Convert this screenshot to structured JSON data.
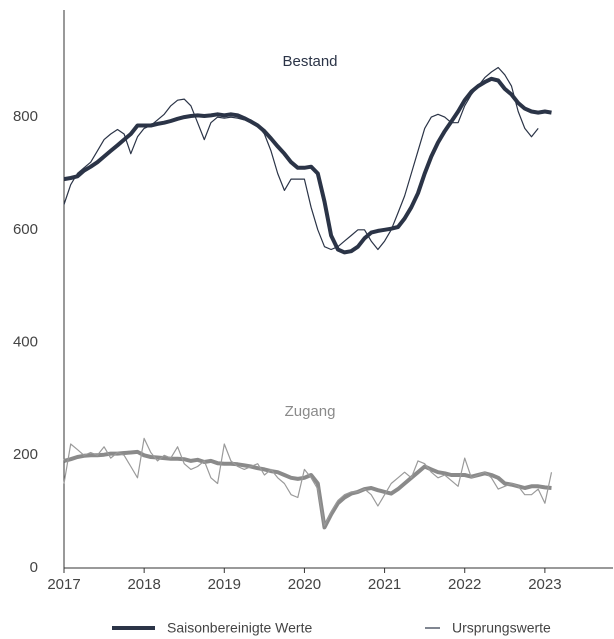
{
  "chart_data": {
    "type": "line",
    "x": [
      2017.0,
      2017.083,
      2017.167,
      2017.25,
      2017.333,
      2017.417,
      2017.5,
      2017.583,
      2017.667,
      2017.75,
      2017.833,
      2017.917,
      2018.0,
      2018.083,
      2018.167,
      2018.25,
      2018.333,
      2018.417,
      2018.5,
      2018.583,
      2018.667,
      2018.75,
      2018.833,
      2018.917,
      2019.0,
      2019.083,
      2019.167,
      2019.25,
      2019.333,
      2019.417,
      2019.5,
      2019.583,
      2019.667,
      2019.75,
      2019.833,
      2019.917,
      2020.0,
      2020.083,
      2020.167,
      2020.25,
      2020.333,
      2020.417,
      2020.5,
      2020.583,
      2020.667,
      2020.75,
      2020.833,
      2020.917,
      2021.0,
      2021.083,
      2021.167,
      2021.25,
      2021.333,
      2021.417,
      2021.5,
      2021.583,
      2021.667,
      2021.75,
      2021.833,
      2021.917,
      2022.0,
      2022.083,
      2022.167,
      2022.25,
      2022.333,
      2022.417,
      2022.5,
      2022.583,
      2022.667,
      2022.75,
      2022.833,
      2022.917,
      2023.0,
      2023.083
    ],
    "series": [
      {
        "name": "Saisonbereinigte Werte",
        "label": "Bestand",
        "color": "#2b3447",
        "line_width": 4,
        "values": [
          690,
          692,
          695,
          705,
          712,
          720,
          730,
          740,
          750,
          760,
          770,
          785,
          785,
          785,
          788,
          790,
          793,
          797,
          800,
          802,
          803,
          802,
          803,
          805,
          803,
          805,
          803,
          798,
          792,
          785,
          775,
          762,
          748,
          735,
          720,
          710,
          710,
          712,
          700,
          650,
          590,
          565,
          560,
          562,
          570,
          585,
          595,
          598,
          600,
          602,
          605,
          620,
          640,
          665,
          700,
          730,
          755,
          775,
          792,
          810,
          830,
          845,
          855,
          862,
          868,
          865,
          850,
          840,
          825,
          815,
          810,
          808,
          810,
          808
        ]
      },
      {
        "name": "Ursprungswerte",
        "label": "Bestand",
        "color": "#2b3447",
        "line_width": 1.2,
        "values": [
          645,
          680,
          700,
          710,
          720,
          740,
          760,
          770,
          778,
          770,
          735,
          765,
          780,
          785,
          795,
          805,
          820,
          830,
          832,
          820,
          790,
          760,
          790,
          800,
          798,
          800,
          798,
          795,
          795,
          785,
          770,
          740,
          700,
          670,
          690,
          690,
          690,
          640,
          600,
          570,
          565,
          570,
          580,
          590,
          600,
          600,
          580,
          565,
          580,
          600,
          630,
          660,
          700,
          740,
          780,
          800,
          805,
          800,
          790,
          790,
          820,
          840,
          855,
          870,
          880,
          888,
          875,
          855,
          810,
          780,
          765,
          780,
          null,
          null
        ]
      },
      {
        "name": "Saisonbereinigte Werte",
        "label": "Zugang",
        "color": "#8a8a8a",
        "line_width": 4,
        "values": [
          190,
          193,
          197,
          199,
          200,
          200,
          201,
          203,
          203,
          204,
          205,
          206,
          200,
          197,
          196,
          195,
          194,
          194,
          193,
          190,
          192,
          188,
          190,
          186,
          185,
          185,
          184,
          182,
          180,
          177,
          175,
          172,
          170,
          165,
          160,
          158,
          160,
          165,
          150,
          72,
          95,
          115,
          125,
          132,
          135,
          140,
          142,
          138,
          135,
          132,
          140,
          150,
          160,
          170,
          180,
          175,
          170,
          168,
          165,
          165,
          165,
          162,
          165,
          168,
          165,
          160,
          150,
          148,
          145,
          142,
          145,
          145,
          143,
          142
        ]
      },
      {
        "name": "Ursprungswerte",
        "label": "Zugang",
        "color": "#9a9a9a",
        "line_width": 1.2,
        "values": [
          150,
          220,
          210,
          200,
          205,
          200,
          215,
          195,
          205,
          200,
          180,
          160,
          230,
          205,
          190,
          200,
          195,
          215,
          185,
          175,
          180,
          190,
          160,
          150,
          220,
          190,
          180,
          175,
          180,
          185,
          165,
          175,
          160,
          150,
          130,
          125,
          175,
          160,
          140,
          75,
          100,
          120,
          130,
          135,
          135,
          140,
          130,
          110,
          130,
          150,
          160,
          170,
          160,
          190,
          185,
          170,
          160,
          165,
          155,
          145,
          195,
          160,
          165,
          170,
          160,
          140,
          145,
          150,
          145,
          130,
          130,
          140,
          115,
          170
        ]
      }
    ],
    "xlim": [
      2017,
      2023.85
    ],
    "xticks": [
      2017,
      2018,
      2019,
      2020,
      2021,
      2022,
      2023
    ],
    "ylim": [
      0,
      990
    ],
    "yticks": [
      0,
      200,
      400,
      600,
      800
    ],
    "grid": false,
    "legend": "bottom"
  }
}
